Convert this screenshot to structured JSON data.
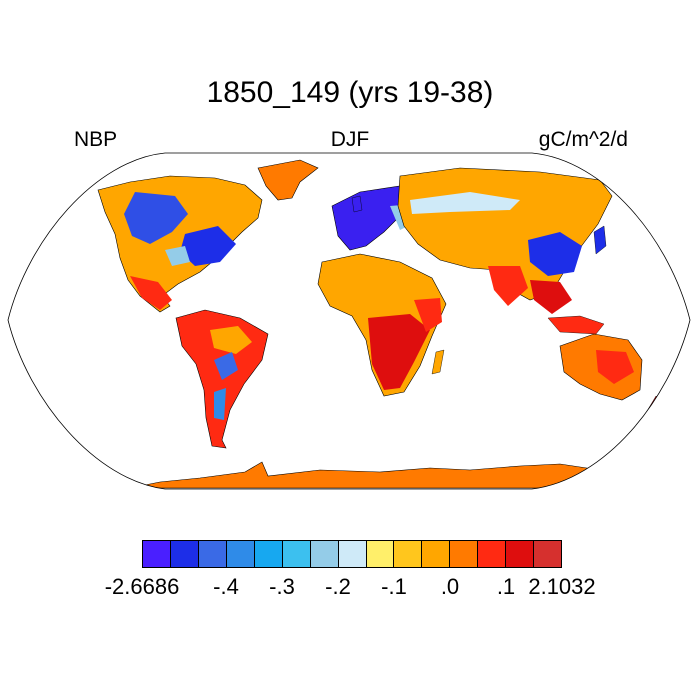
{
  "title": "1850_149 (yrs 19-38)",
  "left_label": "NBP",
  "center_label": "DJF",
  "right_label": "gC/m^2/d",
  "colorbar": {
    "colors": [
      "#4a1fff",
      "#1d2ee8",
      "#3a6ae6",
      "#2f8be8",
      "#17a8f0",
      "#3cc0ef",
      "#94cce8",
      "#cfeaf8",
      "#ffef6a",
      "#ffc61d",
      "#ffa600",
      "#ff7a00",
      "#ff2a12",
      "#de0e0e",
      "#d6302e"
    ],
    "tick_labels": [
      "-2.6686",
      "-.4",
      "-.3",
      "-.2",
      "-.1",
      ".0",
      ".1",
      "2.1032"
    ]
  },
  "map": {
    "projection": "Robinson",
    "ocean_color": "#ffffff",
    "coastline_color": "#000000"
  }
}
